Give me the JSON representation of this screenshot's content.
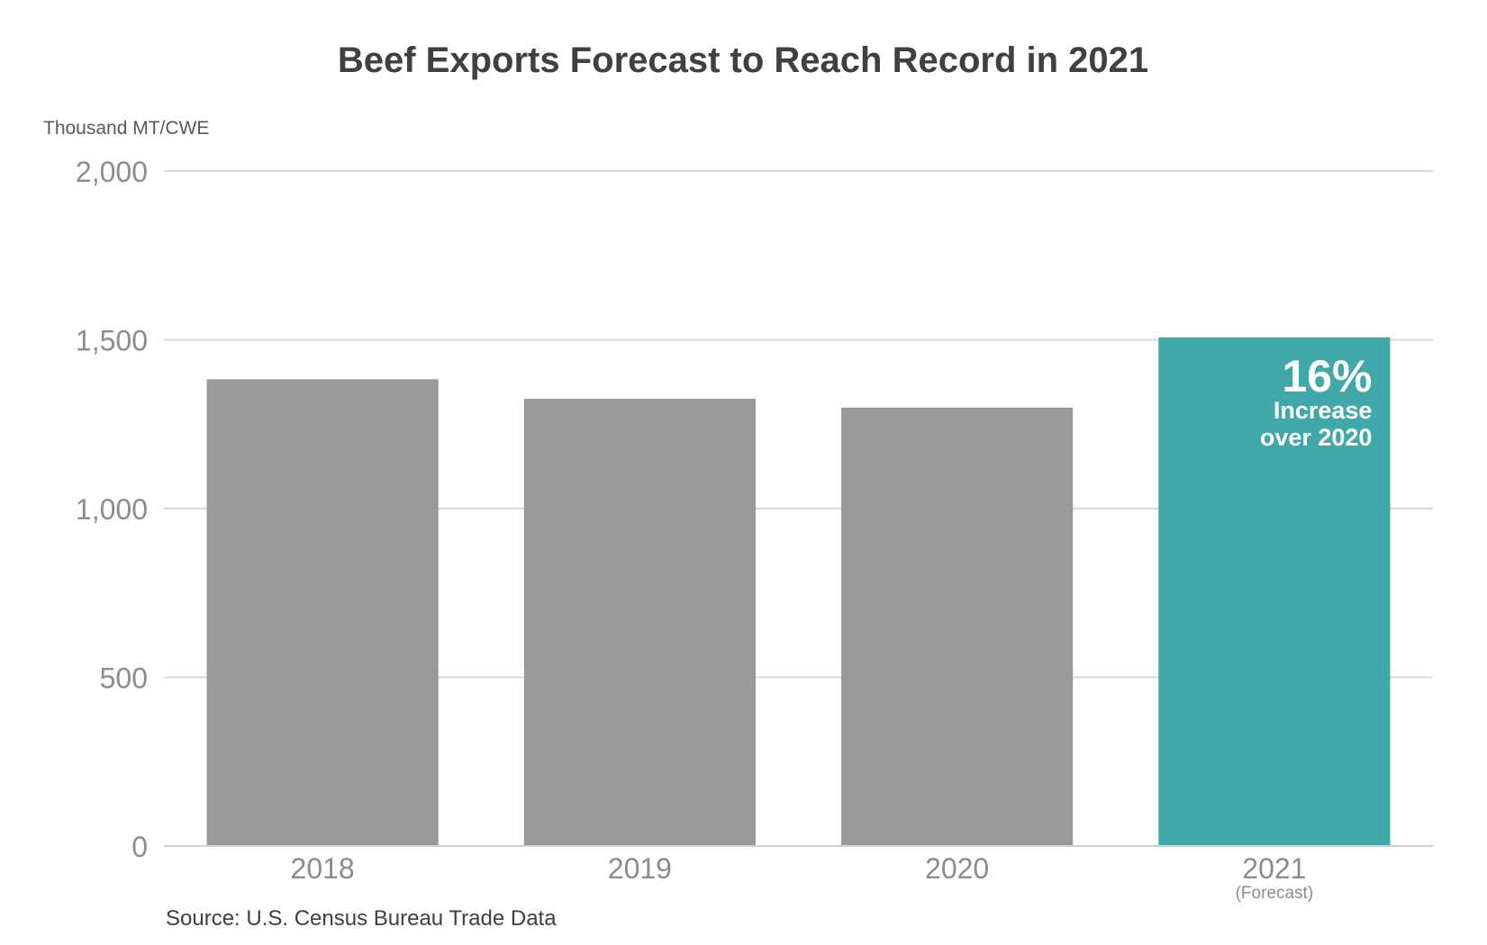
{
  "chart_data": {
    "type": "bar",
    "title": "Beef Exports Forecast to Reach Record in 2021",
    "ylabel": "Thousand MT/CWE",
    "xlabel": "",
    "categories": [
      "2018",
      "2019",
      "2020",
      "2021"
    ],
    "category_sublabels": [
      "",
      "",
      "",
      "(Forecast)"
    ],
    "values": [
      1383,
      1325,
      1299,
      1507
    ],
    "bar_colors": [
      "#999999",
      "#999999",
      "#999999",
      "#40a8a8"
    ],
    "ylim": [
      0,
      2000
    ],
    "yticks": [
      0,
      500,
      1000,
      1500,
      2000
    ],
    "ytick_labels": [
      "0",
      "500",
      "1,000",
      "1,500",
      "2,000"
    ],
    "grid": true,
    "legend": "none",
    "annotation": {
      "category": "2021",
      "big": "16%",
      "line1": "Increase",
      "line2": "over 2020"
    },
    "source": "Source: U.S. Census Bureau Trade Data"
  }
}
